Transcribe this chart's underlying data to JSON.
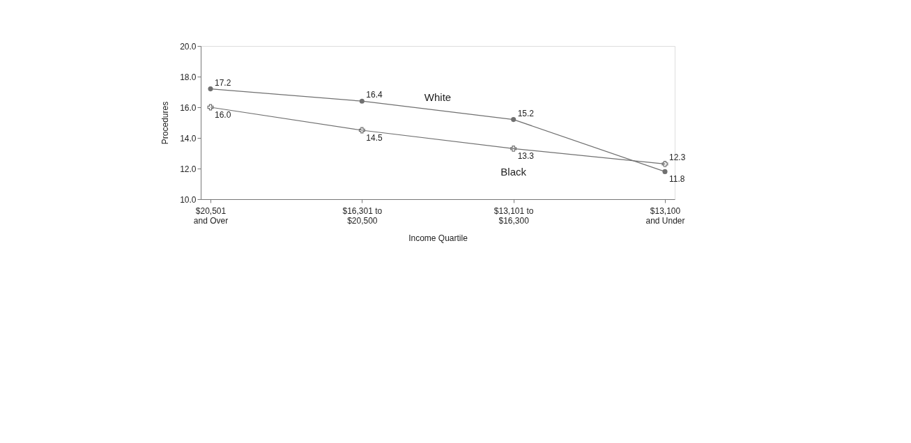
{
  "chart_data": {
    "type": "line",
    "xlabel": "Income Quartile",
    "ylabel": "Procedures",
    "categories": [
      "$20,501\nand Over",
      "$16,301 to\n$20,500",
      "$13,101 to\n$16,300",
      "$13,100\nand Under"
    ],
    "series": [
      {
        "name": "White",
        "color": "#707070",
        "marker": "circle",
        "values": [
          17.2,
          16.4,
          15.2,
          11.8
        ],
        "value_labels": [
          "17.2",
          "16.4",
          "15.2",
          "11.8"
        ]
      },
      {
        "name": "Black",
        "color": "#707070",
        "marker": "cross",
        "values": [
          16.0,
          14.5,
          13.3,
          12.3
        ],
        "value_labels": [
          "16.0",
          "14.5",
          "13.3",
          "12.3"
        ]
      }
    ],
    "ylim": [
      10,
      20
    ],
    "yticks": [
      {
        "value": 10,
        "label": "10.0"
      },
      {
        "value": 12,
        "label": "12.0"
      },
      {
        "value": 14,
        "label": "14.0"
      },
      {
        "value": 16,
        "label": "16.0"
      },
      {
        "value": 18,
        "label": "18.0"
      },
      {
        "value": 20,
        "label": "20.0"
      }
    ],
    "grid": false
  }
}
